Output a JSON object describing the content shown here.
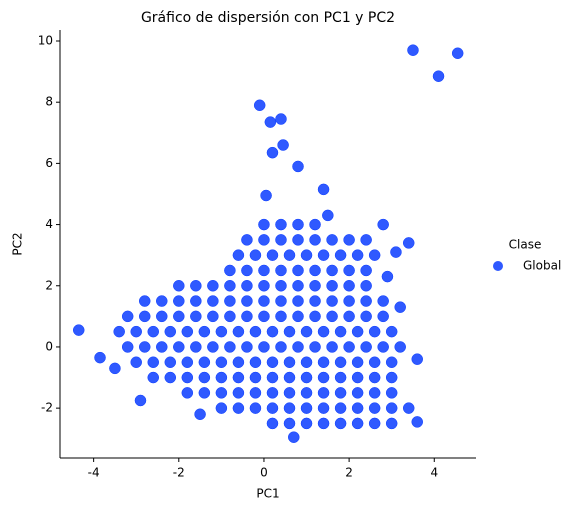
{
  "chart_data": {
    "type": "scatter",
    "title": "Gráfico de dispersión con PC1 y PC2",
    "x_label": "PC1",
    "y_label": "PC2",
    "legend_title": "Clase",
    "legend_position": "right",
    "xlim": [
      -4.79,
      4.98
    ],
    "ylim": [
      -3.63,
      10.36
    ],
    "xticks": [
      -4,
      -2,
      0,
      2,
      4
    ],
    "yticks": [
      -2,
      0,
      2,
      4,
      6,
      8,
      10
    ],
    "grid": false,
    "series": [
      {
        "name": "Global",
        "color": "#0a3cff",
        "x": [
          0,
          0.4,
          0.8,
          1.2,
          -0.4,
          0,
          0.4,
          0.8,
          1.2,
          1.6,
          2.0,
          2.4,
          -0.6,
          -0.2,
          0.2,
          0.6,
          1.0,
          1.4,
          1.8,
          2.2,
          2.6,
          -0.8,
          -0.4,
          0,
          0.4,
          0.8,
          1.2,
          1.6,
          2.0,
          2.4,
          -2.0,
          -1.6,
          -1.2,
          -0.8,
          -0.4,
          0,
          0.4,
          0.8,
          1.2,
          1.6,
          2.0,
          2.4,
          -2.8,
          -2.4,
          -2.0,
          -1.6,
          -1.2,
          -0.8,
          -0.4,
          0,
          0.4,
          0.8,
          1.2,
          1.6,
          2.0,
          2.4,
          2.8,
          -3.2,
          -2.8,
          -2.4,
          -2.0,
          -1.6,
          -1.2,
          -0.8,
          -0.4,
          0,
          0.4,
          0.8,
          1.2,
          1.6,
          2.0,
          2.4,
          2.8,
          -3.4,
          -3.0,
          -2.6,
          -2.2,
          -1.8,
          -1.4,
          -1.0,
          -0.6,
          -0.2,
          0.2,
          0.6,
          1.0,
          1.4,
          1.8,
          2.2,
          2.6,
          3.0,
          -3.2,
          -2.8,
          -2.4,
          -2.0,
          -1.6,
          -1.2,
          -0.8,
          -0.4,
          0,
          0.4,
          0.8,
          1.2,
          1.6,
          2.0,
          2.4,
          2.8,
          3.2,
          -3.0,
          -2.6,
          -2.2,
          -1.8,
          -1.4,
          -1.0,
          -0.6,
          -0.2,
          0.2,
          0.6,
          1.0,
          1.4,
          1.8,
          2.2,
          2.6,
          3.0,
          -2.6,
          -2.2,
          -1.8,
          -1.4,
          -1.0,
          -0.6,
          -0.2,
          0.2,
          0.6,
          1.0,
          1.4,
          1.8,
          2.2,
          2.6,
          3.0,
          -1.8,
          -1.4,
          -1.0,
          -0.6,
          -0.2,
          0.2,
          0.6,
          1.0,
          1.4,
          1.8,
          2.2,
          2.6,
          3.0,
          -1.0,
          -0.6,
          -0.2,
          0.2,
          0.6,
          1.0,
          1.4,
          1.8,
          2.2,
          2.6,
          3.0,
          3.4,
          0.2,
          0.6,
          1.0,
          1.4,
          1.8,
          2.2,
          2.6,
          3.0,
          3.5,
          4.55,
          4.1,
          -0.1,
          0.4,
          0.15,
          0.45,
          0.2,
          0.8,
          1.4,
          0.05,
          -4.35,
          -3.85,
          -2.9,
          3.4,
          3.1,
          3.6,
          3.6,
          -1.5,
          0.7,
          3.2,
          2.9,
          -3.5,
          2.8,
          1.5
        ],
        "y": [
          4,
          4,
          4,
          4,
          3.5,
          3.5,
          3.5,
          3.5,
          3.5,
          3.5,
          3.5,
          3.5,
          3,
          3,
          3,
          3,
          3,
          3,
          3,
          3,
          3,
          2.5,
          2.5,
          2.5,
          2.5,
          2.5,
          2.5,
          2.5,
          2.5,
          2.5,
          2,
          2,
          2,
          2,
          2,
          2,
          2,
          2,
          2,
          2,
          2,
          2,
          1.5,
          1.5,
          1.5,
          1.5,
          1.5,
          1.5,
          1.5,
          1.5,
          1.5,
          1.5,
          1.5,
          1.5,
          1.5,
          1.5,
          1.5,
          1,
          1,
          1,
          1,
          1,
          1,
          1,
          1,
          1,
          1,
          1,
          1,
          1,
          1,
          1,
          1,
          0.5,
          0.5,
          0.5,
          0.5,
          0.5,
          0.5,
          0.5,
          0.5,
          0.5,
          0.5,
          0.5,
          0.5,
          0.5,
          0.5,
          0.5,
          0.5,
          0.5,
          0,
          0,
          0,
          0,
          0,
          0,
          0,
          0,
          0,
          0,
          0,
          0,
          0,
          0,
          0,
          0,
          0,
          -0.5,
          -0.5,
          -0.5,
          -0.5,
          -0.5,
          -0.5,
          -0.5,
          -0.5,
          -0.5,
          -0.5,
          -0.5,
          -0.5,
          -0.5,
          -0.5,
          -0.5,
          -0.5,
          -1,
          -1,
          -1,
          -1,
          -1,
          -1,
          -1,
          -1,
          -1,
          -1,
          -1,
          -1,
          -1,
          -1,
          -1,
          -1.5,
          -1.5,
          -1.5,
          -1.5,
          -1.5,
          -1.5,
          -1.5,
          -1.5,
          -1.5,
          -1.5,
          -1.5,
          -1.5,
          -1.5,
          -2,
          -2,
          -2,
          -2,
          -2,
          -2,
          -2,
          -2,
          -2,
          -2,
          -2,
          -2,
          -2.5,
          -2.5,
          -2.5,
          -2.5,
          -2.5,
          -2.5,
          -2.5,
          -2.5,
          9.7,
          9.6,
          8.85,
          7.9,
          7.45,
          7.35,
          6.6,
          6.35,
          5.9,
          5.15,
          4.95,
          0.55,
          -0.35,
          -1.75,
          3.4,
          3.1,
          -0.4,
          -2.45,
          -2.2,
          -2.95,
          1.3,
          2.3,
          -0.7,
          4.0,
          4.3
        ]
      }
    ]
  }
}
